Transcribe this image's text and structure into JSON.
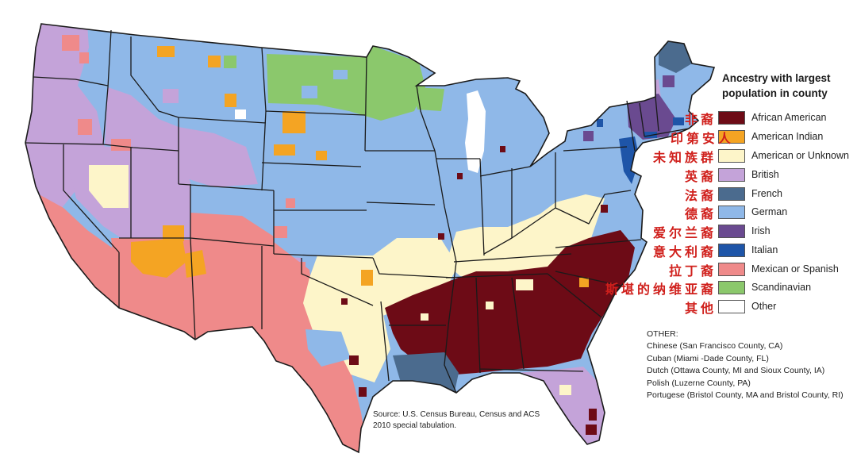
{
  "legend": {
    "title_line1": "Ancestry with largest",
    "title_line2": "population in county",
    "items": [
      {
        "label": "African American",
        "label_zh": "非裔",
        "color": "#6d0b16"
      },
      {
        "label": "American Indian",
        "label_zh": "印第安人",
        "color": "#f4a423"
      },
      {
        "label": "American or Unknown",
        "label_zh": "未知族群",
        "color": "#fdf5c9"
      },
      {
        "label": "British",
        "label_zh": "英裔",
        "color": "#c4a3d9"
      },
      {
        "label": "French",
        "label_zh": "法裔",
        "color": "#4b6b8e"
      },
      {
        "label": "German",
        "label_zh": "德裔",
        "color": "#8fb8e8"
      },
      {
        "label": "Irish",
        "label_zh": "爱尔兰裔",
        "color": "#6a4a90"
      },
      {
        "label": "Italian",
        "label_zh": "意大利裔",
        "color": "#1e55a8"
      },
      {
        "label": "Mexican or Spanish",
        "label_zh": "拉丁裔",
        "color": "#ef8a8a"
      },
      {
        "label": "Scandinavian",
        "label_zh": "斯堪的纳维亚裔",
        "color": "#8bc86c"
      },
      {
        "label": "Other",
        "label_zh": "其他",
        "color": "#ffffff"
      }
    ]
  },
  "other_notes": {
    "heading": "OTHER:",
    "lines": [
      "Chinese (San Francisco County, CA)",
      "Cuban (Miami -Dade County, FL)",
      "Dutch (Ottawa County, MI and Sioux County, IA)",
      "Polish (Luzerne County, PA)",
      "Portugese (Bristol County, MA and Bristol County, RI)"
    ]
  },
  "source": {
    "line1": "Source: U.S. Census Bureau, Census and ACS",
    "line2": "2010 special tabulation."
  }
}
